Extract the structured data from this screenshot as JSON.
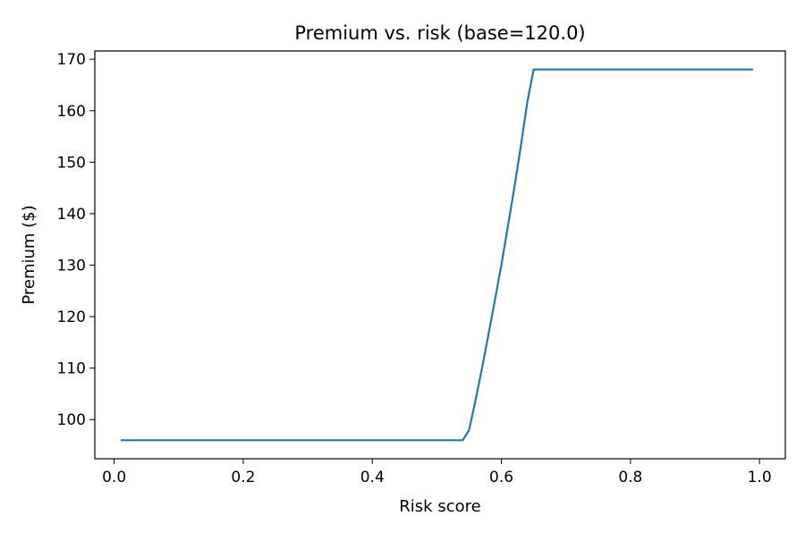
{
  "chart_data": {
    "type": "line",
    "title": "Premium vs. risk (base=120.0)",
    "xlabel": "Risk score",
    "ylabel": "Premium ($)",
    "xlim": [
      -0.03,
      1.04
    ],
    "ylim": [
      92.4,
      171.6
    ],
    "xticks": [
      0.0,
      0.2,
      0.4,
      0.6,
      0.8,
      1.0
    ],
    "xtick_labels": [
      "0.0",
      "0.2",
      "0.4",
      "0.6",
      "0.8",
      "1.0"
    ],
    "yticks": [
      100,
      110,
      120,
      130,
      140,
      150,
      160,
      170
    ],
    "ytick_labels": [
      "100",
      "110",
      "120",
      "130",
      "140",
      "150",
      "160",
      "170"
    ],
    "grid": false,
    "series_color": "#1f77b4",
    "series": [
      {
        "x": [
          0.01,
          0.54,
          0.55,
          0.56,
          0.57,
          0.58,
          0.59,
          0.6,
          0.61,
          0.62,
          0.63,
          0.64,
          0.65,
          0.66,
          0.99
        ],
        "y": [
          96.0,
          96.0,
          98.0,
          103.8,
          110.0,
          116.5,
          123.2,
          130.0,
          137.5,
          145.0,
          153.0,
          161.5,
          168.0,
          168.0,
          168.0
        ]
      }
    ]
  }
}
